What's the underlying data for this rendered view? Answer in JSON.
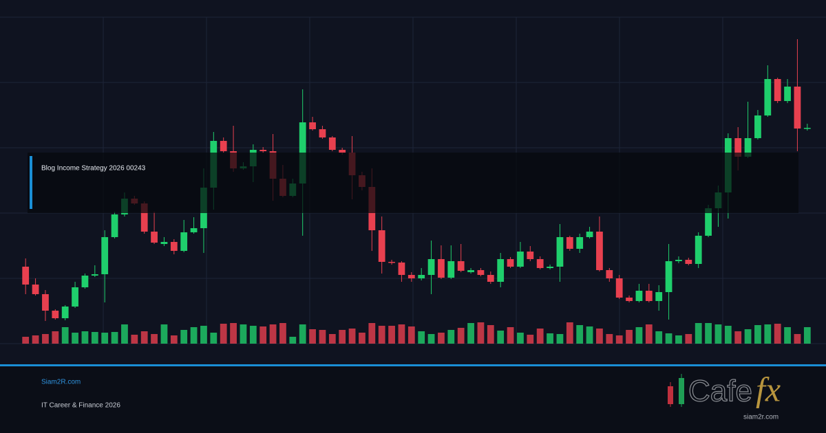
{
  "banner": {
    "headline": "Blog Income Strategy 2026 00243",
    "site": "Siam2R.com",
    "tagline": "IT Career & Finance 2026",
    "logo_word": "Cafe",
    "logo_mark": "fx",
    "logo_url": "siam2r.com"
  },
  "chart_data": {
    "type": "candlestick",
    "ylim": [
      0,
      500
    ],
    "up_color": "#1fcf6c",
    "down_color": "#e8404f",
    "open": [
      112,
      86,
      72,
      48,
      37,
      54,
      82,
      99,
      101,
      155,
      188,
      211,
      204,
      163,
      145,
      148,
      135,
      162,
      168,
      227,
      295,
      280,
      255,
      258,
      282,
      280,
      240,
      215,
      233,
      322,
      312,
      300,
      282,
      278,
      245,
      228,
      165,
      119,
      118,
      100,
      95,
      100,
      123,
      96,
      120,
      104,
      107,
      100,
      90,
      123,
      112,
      134,
      123,
      110,
      112,
      155,
      138,
      155,
      163,
      107,
      95,
      67,
      62,
      77,
      62,
      75,
      120,
      122,
      116,
      157,
      197,
      220,
      299,
      272,
      299,
      332,
      385,
      353,
      374,
      313
    ],
    "close": [
      86,
      72,
      48,
      37,
      54,
      82,
      99,
      101,
      155,
      188,
      211,
      204,
      163,
      147,
      148,
      135,
      162,
      168,
      227,
      295,
      280,
      255,
      258,
      282,
      280,
      240,
      215,
      233,
      322,
      312,
      300,
      282,
      278,
      245,
      228,
      165,
      119,
      118,
      100,
      95,
      100,
      123,
      96,
      120,
      106,
      107,
      100,
      90,
      123,
      112,
      134,
      123,
      110,
      112,
      155,
      138,
      155,
      163,
      107,
      95,
      67,
      62,
      77,
      62,
      75,
      120,
      122,
      116,
      157,
      197,
      220,
      299,
      272,
      299,
      332,
      385,
      353,
      374,
      313,
      314
    ],
    "high": [
      124,
      95,
      78,
      50,
      56,
      90,
      102,
      114,
      165,
      192,
      220,
      215,
      207,
      192,
      155,
      152,
      180,
      184,
      255,
      308,
      300,
      317,
      264,
      290,
      286,
      305,
      260,
      240,
      370,
      330,
      317,
      302,
      285,
      302,
      250,
      255,
      185,
      122,
      120,
      104,
      110,
      150,
      143,
      143,
      145,
      110,
      110,
      105,
      132,
      126,
      148,
      142,
      127,
      115,
      174,
      157,
      160,
      170,
      185,
      110,
      100,
      70,
      87,
      87,
      85,
      145,
      127,
      125,
      162,
      202,
      230,
      306,
      315,
      352,
      340,
      405,
      387,
      385,
      443,
      320
    ],
    "low": [
      72,
      70,
      33,
      35,
      34,
      52,
      80,
      97,
      60,
      153,
      185,
      202,
      160,
      145,
      142,
      130,
      133,
      160,
      132,
      195,
      278,
      250,
      253,
      235,
      278,
      208,
      213,
      213,
      157,
      310,
      298,
      280,
      275,
      210,
      223,
      135,
      102,
      115,
      90,
      90,
      92,
      72,
      94,
      94,
      104,
      102,
      98,
      87,
      82,
      110,
      110,
      120,
      108,
      108,
      90,
      135,
      132,
      153,
      105,
      90,
      65,
      60,
      60,
      60,
      48,
      35,
      117,
      114,
      110,
      155,
      170,
      182,
      252,
      270,
      297,
      330,
      350,
      350,
      280,
      310
    ],
    "volume": [
      10,
      12,
      14,
      18,
      24,
      16,
      18,
      17,
      16,
      17,
      28,
      13,
      18,
      14,
      28,
      12,
      20,
      24,
      26,
      16,
      29,
      30,
      28,
      26,
      25,
      28,
      30,
      10,
      28,
      21,
      20,
      14,
      20,
      22,
      16,
      30,
      26,
      26,
      28,
      25,
      18,
      14,
      16,
      20,
      23,
      30,
      31,
      27,
      19,
      24,
      16,
      13,
      22,
      15,
      14,
      31,
      27,
      25,
      22,
      14,
      12,
      20,
      24,
      28,
      18,
      15,
      12,
      14,
      30,
      30,
      28,
      26,
      18,
      21,
      27,
      28,
      29,
      24,
      14,
      24
    ]
  }
}
